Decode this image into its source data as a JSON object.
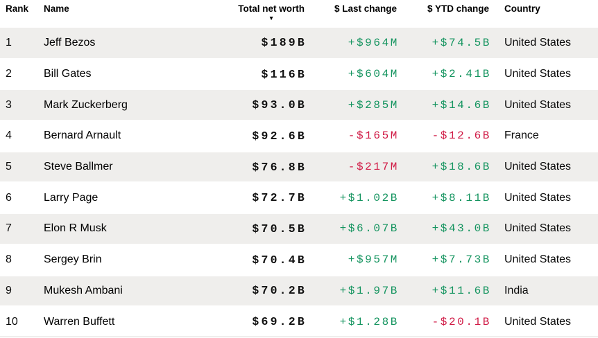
{
  "table": {
    "columns": [
      {
        "id": "rank",
        "label": "Rank"
      },
      {
        "id": "name",
        "label": "Name"
      },
      {
        "id": "total_net_worth",
        "label": "Total net worth"
      },
      {
        "id": "last_change",
        "label": "$ Last change"
      },
      {
        "id": "ytd_change",
        "label": "$ YTD change"
      },
      {
        "id": "country",
        "label": "Country"
      }
    ],
    "sort": {
      "column": "total_net_worth",
      "direction": "descending",
      "icon": "▼"
    },
    "rows": [
      {
        "rank": "1",
        "name": "Jeff Bezos",
        "total_net_worth": "$189B",
        "last_change": "+$964M",
        "ytd_change": "+$74.5B",
        "country": "United States"
      },
      {
        "rank": "2",
        "name": "Bill Gates",
        "total_net_worth": "$116B",
        "last_change": "+$604M",
        "ytd_change": "+$2.41B",
        "country": "United States"
      },
      {
        "rank": "3",
        "name": "Mark Zuckerberg",
        "total_net_worth": "$93.0B",
        "last_change": "+$285M",
        "ytd_change": "+$14.6B",
        "country": "United States"
      },
      {
        "rank": "4",
        "name": "Bernard Arnault",
        "total_net_worth": "$92.6B",
        "last_change": "-$165M",
        "ytd_change": "-$12.6B",
        "country": "France"
      },
      {
        "rank": "5",
        "name": "Steve Ballmer",
        "total_net_worth": "$76.8B",
        "last_change": "-$217M",
        "ytd_change": "+$18.6B",
        "country": "United States"
      },
      {
        "rank": "6",
        "name": "Larry Page",
        "total_net_worth": "$72.7B",
        "last_change": "+$1.02B",
        "ytd_change": "+$8.11B",
        "country": "United States"
      },
      {
        "rank": "7",
        "name": "Elon R Musk",
        "total_net_worth": "$70.5B",
        "last_change": "+$6.07B",
        "ytd_change": "+$43.0B",
        "country": "United States"
      },
      {
        "rank": "8",
        "name": "Sergey Brin",
        "total_net_worth": "$70.4B",
        "last_change": "+$957M",
        "ytd_change": "+$7.73B",
        "country": "United States"
      },
      {
        "rank": "9",
        "name": "Mukesh Ambani",
        "total_net_worth": "$70.2B",
        "last_change": "+$1.97B",
        "ytd_change": "+$11.6B",
        "country": "India"
      },
      {
        "rank": "10",
        "name": "Warren Buffett",
        "total_net_worth": "$69.2B",
        "last_change": "+$1.28B",
        "ytd_change": "-$20.1B",
        "country": "United States"
      }
    ]
  },
  "colors": {
    "positive": "#14945f",
    "negative": "#d01a45",
    "stripe": "#efeeec"
  }
}
